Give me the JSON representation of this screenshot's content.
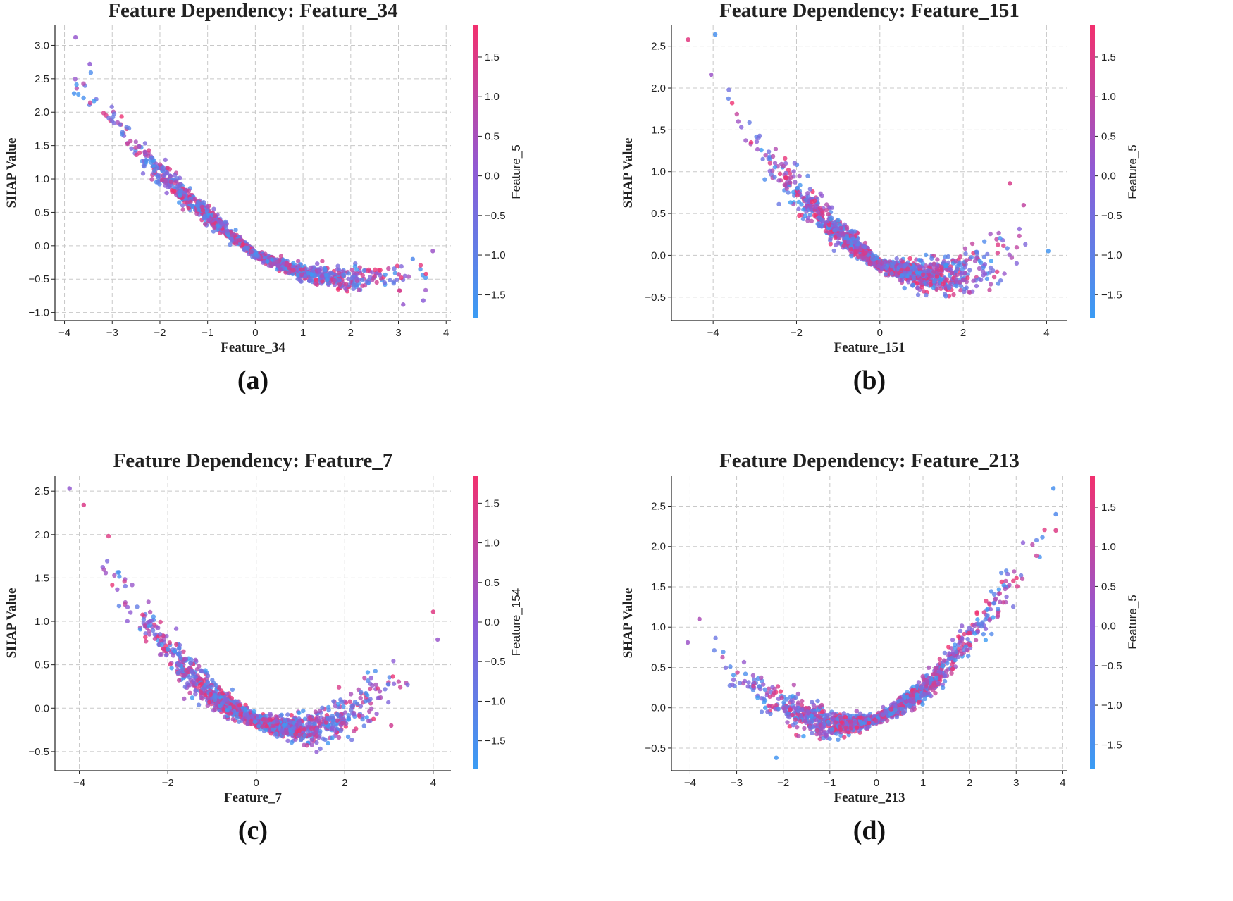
{
  "figure": {
    "panels": [
      {
        "id": "a",
        "letter": "(a)",
        "feature": "Feature_34",
        "color_feature": "Feature_5"
      },
      {
        "id": "b",
        "letter": "(b)",
        "feature": "Feature_151",
        "color_feature": "Feature_5"
      },
      {
        "id": "c",
        "letter": "(c)",
        "feature": "Feature_7",
        "color_feature": "Feature_154"
      },
      {
        "id": "d",
        "letter": "(d)",
        "feature": "Feature_213",
        "color_feature": "Feature_5"
      }
    ]
  },
  "colors": {
    "low": "#3a9cf4",
    "mid": "#8e5bd6",
    "high": "#f2306e",
    "grid": "#c8c8c8",
    "text": "#222222"
  },
  "chart_data": [
    {
      "type": "scatter",
      "title": "Feature Dependency: Feature_34",
      "xlabel": "Feature_34",
      "ylabel": "SHAP Value",
      "colorbar_label": "Feature_5",
      "xlim": [
        -4.2,
        4.1
      ],
      "ylim": [
        -1.12,
        3.3
      ],
      "xticks": [
        -4,
        -3,
        -2,
        -1,
        0,
        1,
        2,
        3,
        4
      ],
      "xtick_labels": [
        "−4",
        "−3",
        "−2",
        "−1",
        "0",
        "1",
        "2",
        "3",
        "4"
      ],
      "yticks": [
        -1.0,
        -0.5,
        0.0,
        0.5,
        1.0,
        1.5,
        2.0,
        2.5,
        3.0
      ],
      "ytick_labels": [
        "−1.0",
        "−0.5",
        "0.0",
        "0.5",
        "1.0",
        "1.5",
        "2.0",
        "2.5",
        "3.0"
      ],
      "colorbar_range": [
        -1.8,
        1.9
      ],
      "colorbar_ticks": [
        -1.5,
        -1.0,
        -0.5,
        0.0,
        0.5,
        1.0,
        1.5
      ],
      "colorbar_tick_labels": [
        "−1.5",
        "−1.0",
        "−0.5",
        "0.0",
        "0.5",
        "1.0",
        "1.5"
      ],
      "trend": {
        "x": [
          -3.8,
          -3,
          -2,
          -1,
          0,
          1,
          2,
          3,
          3.7
        ],
        "y": [
          2.45,
          1.9,
          1.1,
          0.45,
          -0.13,
          -0.42,
          -0.52,
          -0.47,
          -0.42
        ]
      },
      "spread": [
        0.28,
        0.2,
        0.16,
        0.12,
        0.04,
        0.1,
        0.14,
        0.17,
        0.2
      ],
      "n_points": 1300,
      "outliers": [
        {
          "x": -3.77,
          "y": 3.12,
          "c": 0.2
        },
        {
          "x": -3.8,
          "y": 2.28,
          "c": -1.5
        },
        {
          "x": -3.47,
          "y": 2.72,
          "c": 0.1
        },
        {
          "x": 3.72,
          "y": -0.08,
          "c": 0.3
        },
        {
          "x": 3.52,
          "y": -0.82,
          "c": 0.0
        },
        {
          "x": 3.1,
          "y": -0.88,
          "c": 0.2
        },
        {
          "x": 3.3,
          "y": -0.2,
          "c": -1.3
        }
      ]
    },
    {
      "type": "scatter",
      "title": "Feature Dependency: Feature_151",
      "xlabel": "Feature_151",
      "ylabel": "SHAP Value",
      "colorbar_label": "Feature_5",
      "xlim": [
        -5.0,
        4.5
      ],
      "ylim": [
        -0.78,
        2.75
      ],
      "xticks": [
        -4,
        -2,
        0,
        2,
        4
      ],
      "xtick_labels": [
        "−4",
        "−2",
        "0",
        "2",
        "4"
      ],
      "yticks": [
        -0.5,
        0.0,
        0.5,
        1.0,
        1.5,
        2.0,
        2.5
      ],
      "ytick_labels": [
        "−0.5",
        "0.0",
        "0.5",
        "1.0",
        "1.5",
        "2.0",
        "2.5"
      ],
      "colorbar_range": [
        -1.8,
        1.9
      ],
      "colorbar_ticks": [
        -1.5,
        -1.0,
        -0.5,
        0.0,
        0.5,
        1.0,
        1.5
      ],
      "colorbar_tick_labels": [
        "−1.5",
        "−1.0",
        "−0.5",
        "0.0",
        "0.5",
        "1.0",
        "1.5"
      ],
      "trend": {
        "x": [
          -3.8,
          -3,
          -2,
          -1,
          0,
          1,
          2,
          3,
          3.5
        ],
        "y": [
          1.95,
          1.35,
          0.75,
          0.28,
          -0.12,
          -0.25,
          -0.22,
          -0.02,
          0.1
        ]
      },
      "spread": [
        0.3,
        0.24,
        0.2,
        0.15,
        0.05,
        0.14,
        0.2,
        0.24,
        0.3
      ],
      "n_points": 1300,
      "outliers": [
        {
          "x": -4.6,
          "y": 2.58,
          "c": 1.6
        },
        {
          "x": -3.95,
          "y": 2.64,
          "c": -1.5
        },
        {
          "x": -4.05,
          "y": 2.16,
          "c": 0.3
        },
        {
          "x": 4.04,
          "y": 0.05,
          "c": -1.6
        },
        {
          "x": 3.12,
          "y": 0.86,
          "c": 1.4
        },
        {
          "x": 3.45,
          "y": 0.6,
          "c": 1.0
        }
      ]
    },
    {
      "type": "scatter",
      "title": "Feature Dependency: Feature_7",
      "xlabel": "Feature_7",
      "ylabel": "SHAP Value",
      "colorbar_label": "Feature_154",
      "xlim": [
        -4.55,
        4.4
      ],
      "ylim": [
        -0.72,
        2.68
      ],
      "xticks": [
        -4,
        -2,
        0,
        2,
        4
      ],
      "xtick_labels": [
        "−4",
        "−2",
        "0",
        "2",
        "4"
      ],
      "yticks": [
        -0.5,
        0.0,
        0.5,
        1.0,
        1.5,
        2.0,
        2.5
      ],
      "ytick_labels": [
        "−0.5",
        "0.0",
        "0.5",
        "1.0",
        "1.5",
        "2.0",
        "2.5"
      ],
      "colorbar_range": [
        -1.85,
        1.85
      ],
      "colorbar_ticks": [
        -1.5,
        -1.0,
        -0.5,
        0.0,
        0.5,
        1.0,
        1.5
      ],
      "colorbar_tick_labels": [
        "−1.5",
        "−1.0",
        "−0.5",
        "0.0",
        "0.5",
        "1.0",
        "1.5"
      ],
      "trend": {
        "x": [
          -3.6,
          -3,
          -2,
          -1,
          0,
          1,
          2,
          3,
          3.5
        ],
        "y": [
          1.85,
          1.35,
          0.65,
          0.15,
          -0.15,
          -0.25,
          -0.12,
          0.25,
          0.5
        ]
      },
      "spread": [
        0.3,
        0.25,
        0.2,
        0.14,
        0.05,
        0.14,
        0.2,
        0.24,
        0.28
      ],
      "n_points": 1300,
      "outliers": [
        {
          "x": -4.22,
          "y": 2.53,
          "c": 0.1
        },
        {
          "x": -3.9,
          "y": 2.34,
          "c": 1.4
        },
        {
          "x": 4.0,
          "y": 1.11,
          "c": 1.5
        },
        {
          "x": 4.1,
          "y": 0.79,
          "c": 0.2
        },
        {
          "x": 3.05,
          "y": -0.2,
          "c": 1.2
        }
      ]
    },
    {
      "type": "scatter",
      "title": "Feature Dependency: Feature_213",
      "xlabel": "Feature_213",
      "ylabel": "SHAP Value",
      "colorbar_label": "Feature_5",
      "xlim": [
        -4.4,
        4.1
      ],
      "ylim": [
        -0.78,
        2.88
      ],
      "xticks": [
        -4,
        -3,
        -2,
        -1,
        0,
        1,
        2,
        3,
        4
      ],
      "xtick_labels": [
        "−4",
        "−3",
        "−2",
        "−1",
        "0",
        "1",
        "2",
        "3",
        "4"
      ],
      "yticks": [
        -0.5,
        0.0,
        0.5,
        1.0,
        1.5,
        2.0,
        2.5
      ],
      "ytick_labels": [
        "−0.5",
        "0.0",
        "0.5",
        "1.0",
        "1.5",
        "2.0",
        "2.5"
      ],
      "colorbar_range": [
        -1.8,
        1.9
      ],
      "colorbar_ticks": [
        -1.5,
        -1.0,
        -0.5,
        0.0,
        0.5,
        1.0,
        1.5
      ],
      "colorbar_tick_labels": [
        "−1.5",
        "−1.0",
        "−0.5",
        "0.0",
        "0.5",
        "1.0",
        "1.5"
      ],
      "trend": {
        "x": [
          -3.5,
          -3,
          -2,
          -1,
          0,
          1,
          2,
          3,
          3.7
        ],
        "y": [
          0.75,
          0.4,
          0.0,
          -0.22,
          -0.15,
          0.2,
          0.85,
          1.6,
          2.2
        ]
      },
      "spread": [
        0.2,
        0.2,
        0.18,
        0.14,
        0.04,
        0.12,
        0.2,
        0.24,
        0.28
      ],
      "n_points": 1300,
      "outliers": [
        {
          "x": -4.05,
          "y": 0.81,
          "c": 0.3
        },
        {
          "x": -3.8,
          "y": 1.1,
          "c": 0.6
        },
        {
          "x": 3.8,
          "y": 2.72,
          "c": -1.5
        },
        {
          "x": 3.85,
          "y": 2.4,
          "c": -1.3
        },
        {
          "x": 3.85,
          "y": 2.2,
          "c": 1.5
        },
        {
          "x": -2.15,
          "y": -0.62,
          "c": -1.6
        }
      ]
    }
  ]
}
